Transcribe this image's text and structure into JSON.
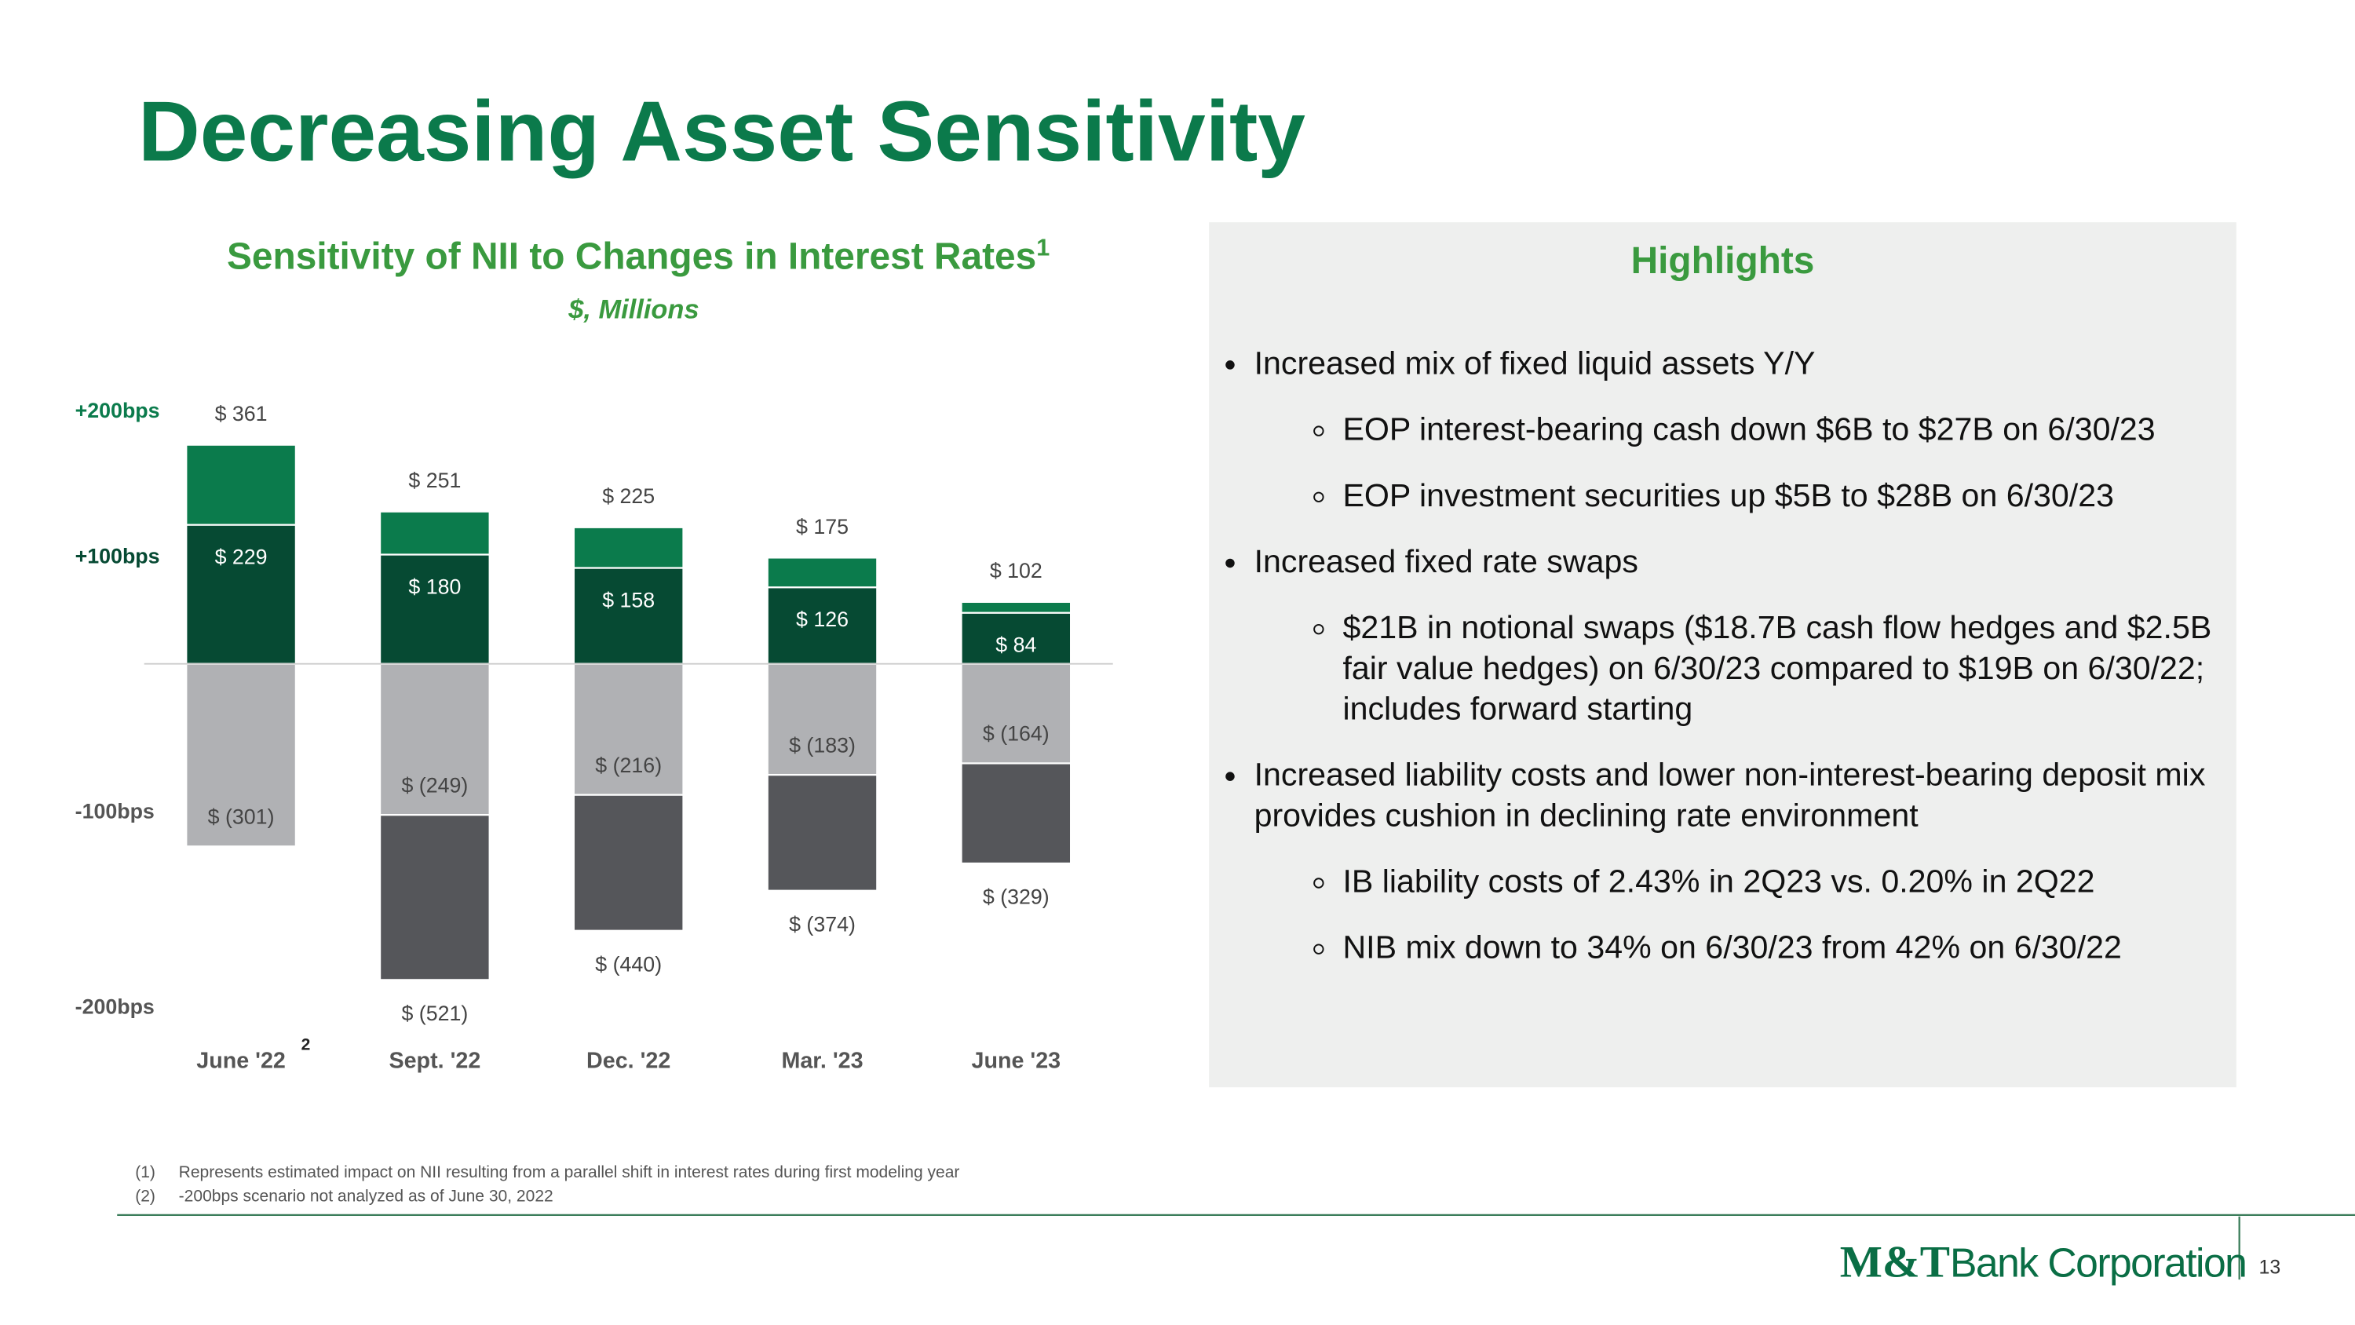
{
  "title": "Decreasing Asset Sensitivity",
  "chart_data": {
    "type": "bar",
    "title": "Sensitivity of NII to Changes in Interest Rates",
    "title_footnote": "1",
    "subtitle": "$, Millions",
    "categories": [
      "June '22",
      "Sept. '22",
      "Dec. '22",
      "Mar. '23",
      "June '23"
    ],
    "category_footnotes": [
      "2",
      null,
      null,
      null,
      null
    ],
    "series": [
      {
        "name": "+200bps",
        "color": "#0b7b4c",
        "values": [
          361,
          251,
          225,
          175,
          102
        ],
        "value_labels": [
          "$ 361",
          "$ 251",
          "$ 225",
          "$ 175",
          "$ 102"
        ]
      },
      {
        "name": "+100bps",
        "color": "#064a33",
        "values": [
          229,
          180,
          158,
          126,
          84
        ],
        "value_labels": [
          "$ 229",
          "$ 180",
          "$ 158",
          "$ 126",
          "$ 84"
        ]
      },
      {
        "name": "-100bps",
        "color": "#b0b1b4",
        "values": [
          -301,
          -249,
          -216,
          -183,
          -164
        ],
        "value_labels": [
          "$ (301)",
          "$ (249)",
          "$ (216)",
          "$ (183)",
          "$ (164)"
        ]
      },
      {
        "name": "-200bps",
        "color": "#55565a",
        "values": [
          null,
          -521,
          -440,
          -374,
          -329
        ],
        "value_labels": [
          null,
          "$ (521)",
          "$ (440)",
          "$ (374)",
          "$ (329)"
        ]
      }
    ],
    "ylim": [
      -600,
      400
    ]
  },
  "highlights": {
    "title": "Highlights",
    "items": [
      {
        "text": "Increased mix of fixed liquid assets Y/Y",
        "subitems": [
          "EOP interest-bearing cash down $6B to $27B on 6/30/23",
          "EOP investment securities up $5B to $28B on 6/30/23"
        ]
      },
      {
        "text": "Increased fixed rate swaps",
        "subitems": [
          "$21B in notional swaps ($18.7B cash flow hedges and $2.5B fair value hedges) on 6/30/23 compared to $19B on 6/30/22; includes forward starting"
        ]
      },
      {
        "text": "Increased liability costs and lower non-interest-bearing deposit mix provides cushion in declining rate environment",
        "subitems": [
          "IB liability costs of 2.43% in 2Q23 vs. 0.20% in 2Q22",
          "NIB mix down to 34% on 6/30/23 from 42% on 6/30/22"
        ]
      }
    ]
  },
  "footnotes": [
    {
      "marker": "(1)",
      "text": "Represents estimated impact on NII resulting from a parallel shift in interest rates during first modeling year"
    },
    {
      "marker": "(2)",
      "text": "-200bps scenario not analyzed as of June 30, 2022"
    }
  ],
  "brand": {
    "mark": "M&T",
    "name": "Bank Corporation"
  },
  "page_number": "13"
}
